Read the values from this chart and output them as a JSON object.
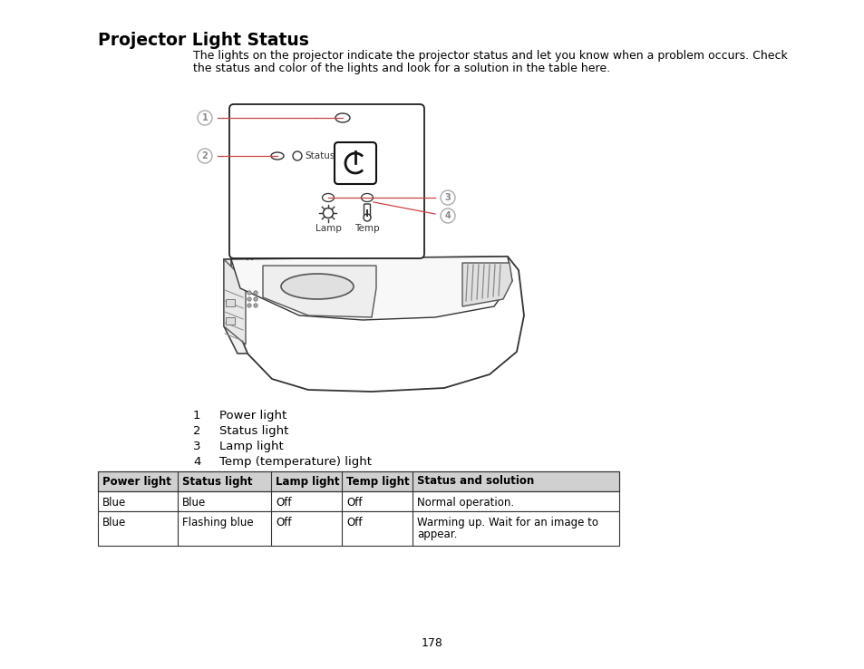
{
  "title": "Projector Light Status",
  "intro_text_line1": "The lights on the projector indicate the projector status and let you know when a problem occurs. Check",
  "intro_text_line2": "the status and color of the lights and look for a solution in the table here.",
  "numbered_items": [
    {
      "num": "1",
      "text": "Power light"
    },
    {
      "num": "2",
      "text": "Status light"
    },
    {
      "num": "3",
      "text": "Lamp light"
    },
    {
      "num": "4",
      "text": "Temp (temperature) light"
    }
  ],
  "table_headers": [
    "Power light",
    "Status light",
    "Lamp light",
    "Temp light",
    "Status and solution"
  ],
  "table_col_widths": [
    88,
    103,
    78,
    78,
    228
  ],
  "table_rows": [
    [
      "Blue",
      "Blue",
      "Off",
      "Off",
      "Normal operation."
    ],
    [
      "Blue",
      "Flashing blue",
      "Off",
      "Off",
      "Warming up. Wait for an image to\nappear."
    ]
  ],
  "page_number": "178",
  "bg_color": "#ffffff",
  "text_color": "#000000",
  "callout_color": "#cc4444",
  "callout_num_color": "#999999",
  "panel_line_color": "#000000",
  "diagram_line_color": "#333333"
}
